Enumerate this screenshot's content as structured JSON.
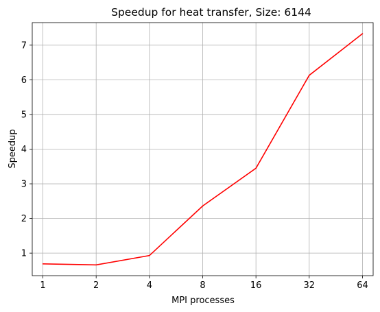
{
  "chart_data": {
    "type": "line",
    "title": "Speedup for heat transfer, Size: 6144",
    "xlabel": "MPI processes",
    "ylabel": "Speedup",
    "categories": [
      "1",
      "2",
      "4",
      "8",
      "16",
      "32",
      "64"
    ],
    "series": [
      {
        "values": [
          0.69,
          0.66,
          0.93,
          2.36,
          3.45,
          6.13,
          7.33
        ],
        "color": "#ff0000"
      }
    ],
    "yticks": [
      1,
      2,
      3,
      4,
      5,
      6,
      7
    ],
    "ylim": [
      0.35,
      7.65
    ],
    "grid": true
  }
}
